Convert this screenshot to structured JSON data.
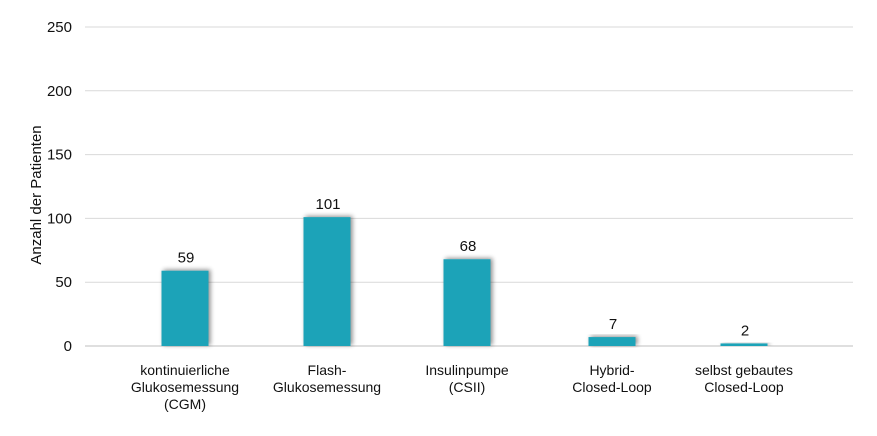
{
  "chart_data": {
    "type": "bar",
    "categories": [
      [
        "kontinuierliche",
        "Glukosemessung",
        "(CGM)"
      ],
      [
        "Flash-",
        "Glukosemessung"
      ],
      [
        "Insulinpumpe",
        "(CSII)"
      ],
      [
        "Hybrid-",
        "Closed-Loop"
      ],
      [
        "selbst gebautes",
        "Closed-Loop"
      ]
    ],
    "values": [
      59,
      101,
      68,
      7,
      2
    ],
    "data_labels": [
      "59",
      "101",
      "68",
      "7",
      "2"
    ],
    "ylabel": "Anzahl der Patienten",
    "xlabel": "",
    "title": "",
    "ylim": [
      0,
      250
    ],
    "yticks": [
      0,
      50,
      100,
      150,
      200,
      250
    ],
    "grid": true,
    "legend": "none",
    "colors": {
      "bar": "#1fa3b8",
      "grid": "#d9d9d9",
      "text": "#111111"
    }
  }
}
